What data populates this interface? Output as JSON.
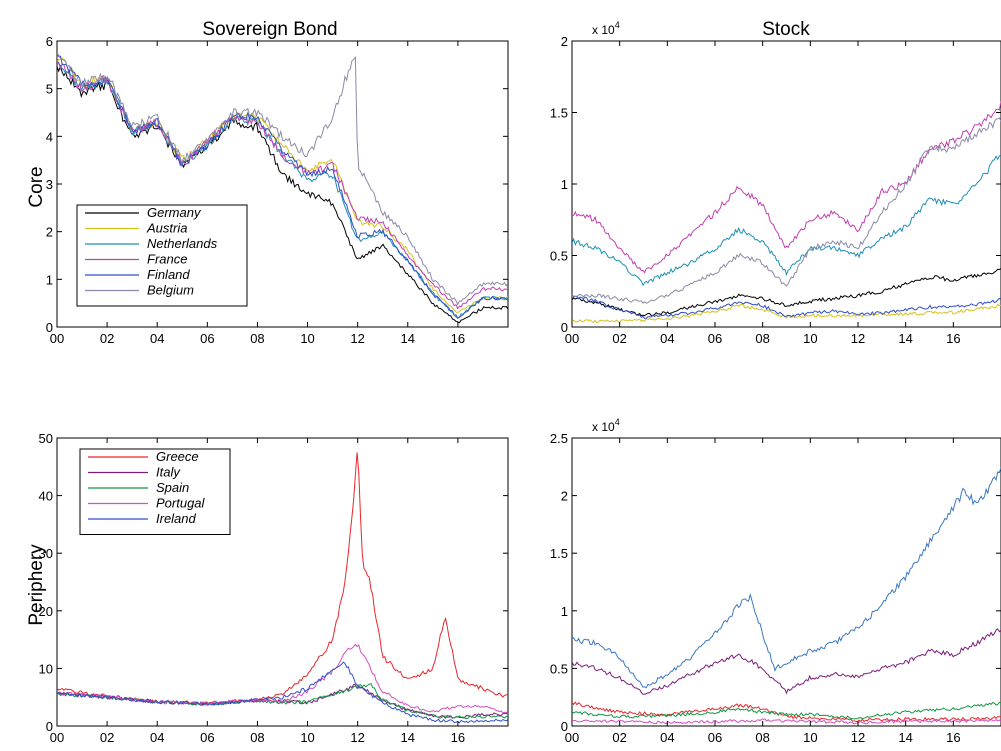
{
  "figure": {
    "col_titles": [
      "Sovereign Bond",
      "Stock"
    ],
    "row_labels": [
      "Core",
      "Periphery"
    ]
  },
  "chart_data": [
    {
      "id": "core-bond",
      "type": "line",
      "title": "Sovereign Bond",
      "ylabel": "Core",
      "xlim": [
        2000,
        2018
      ],
      "ylim": [
        0,
        6
      ],
      "xticks": [
        2000,
        2002,
        2004,
        2006,
        2008,
        2010,
        2012,
        2014,
        2016
      ],
      "xticklabels": [
        "00",
        "02",
        "04",
        "06",
        "08",
        "10",
        "12",
        "14",
        "16"
      ],
      "yticks": [
        0,
        1,
        2,
        3,
        4,
        5,
        6
      ],
      "yticklabels": [
        "0",
        "1",
        "2",
        "3",
        "4",
        "5",
        "6"
      ],
      "legend": "bottom-left",
      "series": [
        {
          "name": "Germany",
          "color": "#000000",
          "x": [
            2000,
            2001,
            2002,
            2003,
            2004,
            2005,
            2006,
            2007,
            2008,
            2009,
            2010,
            2011,
            2012,
            2013,
            2014,
            2015,
            2016,
            2017,
            2018
          ],
          "y": [
            5.5,
            4.9,
            5.1,
            4.0,
            4.2,
            3.4,
            3.8,
            4.3,
            4.2,
            3.2,
            2.8,
            2.6,
            1.4,
            1.7,
            1.1,
            0.5,
            0.1,
            0.4,
            0.4
          ]
        },
        {
          "name": "Austria",
          "color": "#d4c21a",
          "x": [
            2000,
            2001,
            2002,
            2003,
            2004,
            2005,
            2006,
            2007,
            2008,
            2009,
            2010,
            2011,
            2012,
            2013,
            2014,
            2015,
            2016,
            2017,
            2018
          ],
          "y": [
            5.7,
            5.1,
            5.2,
            4.1,
            4.3,
            3.5,
            3.9,
            4.4,
            4.4,
            3.8,
            3.3,
            3.5,
            2.2,
            2.1,
            1.6,
            0.8,
            0.3,
            0.6,
            0.6
          ]
        },
        {
          "name": "Netherlands",
          "color": "#1f8fb8",
          "x": [
            2000,
            2001,
            2002,
            2003,
            2004,
            2005,
            2006,
            2007,
            2008,
            2009,
            2010,
            2011,
            2012,
            2013,
            2014,
            2015,
            2016,
            2017,
            2018
          ],
          "y": [
            5.6,
            5.0,
            5.2,
            4.1,
            4.3,
            3.4,
            3.8,
            4.4,
            4.3,
            3.6,
            3.1,
            3.2,
            1.8,
            2.0,
            1.4,
            0.7,
            0.2,
            0.6,
            0.6
          ]
        },
        {
          "name": "France",
          "color": "#c040b0",
          "x": [
            2000,
            2001,
            2002,
            2003,
            2004,
            2005,
            2006,
            2007,
            2008,
            2009,
            2010,
            2011,
            2012,
            2013,
            2014,
            2015,
            2016,
            2017,
            2018
          ],
          "y": [
            5.6,
            5.0,
            5.2,
            4.1,
            4.3,
            3.4,
            3.9,
            4.4,
            4.3,
            3.6,
            3.2,
            3.4,
            2.3,
            2.2,
            1.5,
            0.9,
            0.4,
            0.8,
            0.8
          ]
        },
        {
          "name": "Finland",
          "color": "#3050c8",
          "x": [
            2000,
            2001,
            2002,
            2003,
            2004,
            2005,
            2006,
            2007,
            2008,
            2009,
            2010,
            2011,
            2012,
            2013,
            2014,
            2015,
            2016,
            2017,
            2018
          ],
          "y": [
            5.7,
            5.1,
            5.2,
            4.1,
            4.3,
            3.4,
            3.8,
            4.4,
            4.4,
            3.7,
            3.2,
            3.3,
            1.9,
            2.0,
            1.4,
            0.7,
            0.2,
            0.6,
            0.6
          ]
        },
        {
          "name": "Belgium",
          "color": "#8a8aa8",
          "x": [
            2000,
            2001,
            2002,
            2003,
            2004,
            2005,
            2006,
            2007,
            2008,
            2009,
            2010,
            2011,
            2011.9,
            2012,
            2013,
            2014,
            2015,
            2016,
            2017,
            2018
          ],
          "y": [
            5.7,
            5.1,
            5.3,
            4.2,
            4.4,
            3.5,
            3.9,
            4.5,
            4.5,
            4.0,
            3.6,
            4.4,
            5.8,
            3.4,
            2.4,
            1.9,
            1.0,
            0.5,
            0.9,
            0.9
          ]
        }
      ]
    },
    {
      "id": "core-stock",
      "type": "line",
      "title": "Stock",
      "multiplier": "x 10",
      "multiplier_exp": "4",
      "xlim": [
        2000,
        2018
      ],
      "ylim": [
        0,
        2
      ],
      "xticks": [
        2000,
        2002,
        2004,
        2006,
        2008,
        2010,
        2012,
        2014,
        2016
      ],
      "xticklabels": [
        "00",
        "02",
        "04",
        "06",
        "08",
        "10",
        "12",
        "14",
        "16"
      ],
      "yticks": [
        0,
        0.5,
        1,
        1.5,
        2
      ],
      "yticklabels": [
        "0",
        "0.5",
        "1",
        "1.5",
        "2"
      ],
      "series": [
        {
          "color": "#000000",
          "x": [
            2000,
            2001,
            2002,
            2003,
            2004,
            2005,
            2006,
            2007,
            2008,
            2009,
            2010,
            2011,
            2012,
            2013,
            2014,
            2015,
            2016,
            2017,
            2018
          ],
          "y": [
            0.2,
            0.17,
            0.12,
            0.08,
            0.1,
            0.14,
            0.18,
            0.22,
            0.2,
            0.15,
            0.18,
            0.2,
            0.22,
            0.25,
            0.3,
            0.35,
            0.33,
            0.36,
            0.4
          ]
        },
        {
          "color": "#d4c21a",
          "x": [
            2000,
            2001,
            2002,
            2003,
            2004,
            2005,
            2006,
            2007,
            2008,
            2009,
            2010,
            2011,
            2012,
            2013,
            2014,
            2015,
            2016,
            2017,
            2018
          ],
          "y": [
            0.04,
            0.04,
            0.04,
            0.05,
            0.06,
            0.08,
            0.11,
            0.15,
            0.12,
            0.07,
            0.08,
            0.08,
            0.08,
            0.09,
            0.09,
            0.1,
            0.1,
            0.13,
            0.15
          ]
        },
        {
          "color": "#1f8fb8",
          "x": [
            2000,
            2001,
            2002,
            2003,
            2004,
            2005,
            2006,
            2007,
            2008,
            2009,
            2010,
            2011,
            2012,
            2013,
            2014,
            2015,
            2016,
            2017,
            2018
          ],
          "y": [
            0.6,
            0.55,
            0.45,
            0.3,
            0.38,
            0.45,
            0.55,
            0.68,
            0.6,
            0.38,
            0.55,
            0.55,
            0.5,
            0.62,
            0.7,
            0.9,
            0.85,
            1.0,
            1.22
          ]
        },
        {
          "color": "#c040b0",
          "x": [
            2000,
            2001,
            2002,
            2003,
            2004,
            2005,
            2006,
            2007,
            2008,
            2009,
            2010,
            2011,
            2012,
            2013,
            2014,
            2015,
            2016,
            2017,
            2018
          ],
          "y": [
            0.8,
            0.75,
            0.55,
            0.38,
            0.5,
            0.65,
            0.8,
            0.98,
            0.85,
            0.55,
            0.75,
            0.8,
            0.68,
            0.95,
            1.0,
            1.25,
            1.3,
            1.4,
            1.55
          ]
        },
        {
          "color": "#3050c8",
          "x": [
            2000,
            2001,
            2002,
            2003,
            2004,
            2005,
            2006,
            2007,
            2008,
            2009,
            2010,
            2011,
            2012,
            2013,
            2014,
            2015,
            2016,
            2017,
            2018
          ],
          "y": [
            0.22,
            0.18,
            0.12,
            0.07,
            0.08,
            0.1,
            0.13,
            0.17,
            0.15,
            0.07,
            0.1,
            0.11,
            0.09,
            0.1,
            0.12,
            0.14,
            0.14,
            0.16,
            0.19
          ]
        },
        {
          "color": "#8a8aa8",
          "x": [
            2000,
            2001,
            2002,
            2003,
            2004,
            2005,
            2006,
            2007,
            2008,
            2009,
            2010,
            2011,
            2012,
            2013,
            2014,
            2015,
            2016,
            2017,
            2018
          ],
          "y": [
            0.22,
            0.22,
            0.2,
            0.17,
            0.22,
            0.3,
            0.38,
            0.5,
            0.45,
            0.28,
            0.55,
            0.6,
            0.55,
            0.8,
            1.0,
            1.25,
            1.25,
            1.35,
            1.45
          ]
        }
      ]
    },
    {
      "id": "periphery-bond",
      "type": "line",
      "ylabel": "Periphery",
      "xlim": [
        2000,
        2018
      ],
      "ylim": [
        0,
        50
      ],
      "xticks": [
        2000,
        2002,
        2004,
        2006,
        2008,
        2010,
        2012,
        2014,
        2016
      ],
      "xticklabels": [
        "00",
        "02",
        "04",
        "06",
        "08",
        "10",
        "12",
        "14",
        "16"
      ],
      "yticks": [
        0,
        10,
        20,
        30,
        40,
        50
      ],
      "yticklabels": [
        "0",
        "10",
        "20",
        "30",
        "40",
        "50"
      ],
      "legend": "top-left",
      "series": [
        {
          "name": "Greece",
          "color": "#e8262b",
          "x": [
            2000,
            2002,
            2004,
            2006,
            2008,
            2009,
            2010,
            2010.5,
            2011,
            2011.5,
            2011.8,
            2012.0,
            2012.2,
            2012.5,
            2013,
            2014,
            2015,
            2015.5,
            2016,
            2017,
            2018
          ],
          "y": [
            6.4,
            5.2,
            4.2,
            4.0,
            4.5,
            5.5,
            9.0,
            12.0,
            15.0,
            25.0,
            38.0,
            48.0,
            28.0,
            25.0,
            12.0,
            8.0,
            10.0,
            19.0,
            8.0,
            6.5,
            5.0
          ]
        },
        {
          "name": "Italy",
          "color": "#7b1d7b",
          "x": [
            2000,
            2002,
            2004,
            2006,
            2008,
            2009,
            2010,
            2011,
            2011.9,
            2012.5,
            2013,
            2014,
            2015,
            2016,
            2017,
            2018
          ],
          "y": [
            5.6,
            5.0,
            4.2,
            3.8,
            4.5,
            4.3,
            4.0,
            5.5,
            7.0,
            5.8,
            4.3,
            2.8,
            1.7,
            1.5,
            2.0,
            2.0
          ]
        },
        {
          "name": "Spain",
          "color": "#139645",
          "x": [
            2000,
            2002,
            2004,
            2006,
            2008,
            2009,
            2010,
            2011,
            2012,
            2012.5,
            2013,
            2014,
            2015,
            2016,
            2017,
            2018
          ],
          "y": [
            5.6,
            5.0,
            4.2,
            3.8,
            4.4,
            4.1,
            4.2,
            5.5,
            6.8,
            7.2,
            4.5,
            2.7,
            1.7,
            1.5,
            1.6,
            1.6
          ]
        },
        {
          "name": "Portugal",
          "color": "#d050c0",
          "x": [
            2000,
            2002,
            2004,
            2006,
            2008,
            2009,
            2010,
            2011,
            2011.6,
            2012.0,
            2012.5,
            2013,
            2014,
            2015,
            2016,
            2017,
            2018
          ],
          "y": [
            5.7,
            5.1,
            4.2,
            3.9,
            4.5,
            4.3,
            6.0,
            9.5,
            13.0,
            14.0,
            10.0,
            6.0,
            3.5,
            2.5,
            3.5,
            3.5,
            2.3
          ]
        },
        {
          "name": "Ireland",
          "color": "#3050c8",
          "x": [
            2000,
            2002,
            2004,
            2006,
            2008,
            2009,
            2010,
            2010.8,
            2011.5,
            2012,
            2013,
            2014,
            2015,
            2016,
            2017,
            2018
          ],
          "y": [
            5.6,
            5.0,
            4.2,
            3.8,
            4.5,
            5.0,
            6.5,
            9.0,
            11.0,
            7.0,
            4.0,
            2.0,
            1.0,
            0.8,
            0.9,
            1.0
          ]
        }
      ]
    },
    {
      "id": "periphery-stock",
      "type": "line",
      "multiplier": "x 10",
      "multiplier_exp": "4",
      "xlim": [
        2000,
        2018
      ],
      "ylim": [
        0,
        2.5
      ],
      "xticks": [
        2000,
        2002,
        2004,
        2006,
        2008,
        2010,
        2012,
        2014,
        2016
      ],
      "xticklabels": [
        "00",
        "02",
        "04",
        "06",
        "08",
        "10",
        "12",
        "14",
        "16"
      ],
      "yticks": [
        0,
        0.5,
        1,
        1.5,
        2,
        2.5
      ],
      "yticklabels": [
        "0",
        "0.5",
        "1",
        "1.5",
        "2",
        "2.5"
      ],
      "series": [
        {
          "color": "#3c78c0",
          "x": [
            2000,
            2001,
            2002,
            2003,
            2004,
            2005,
            2006,
            2007,
            2007.5,
            2008,
            2008.5,
            2009,
            2010,
            2011,
            2012,
            2013,
            2014,
            2015,
            2016,
            2016.5,
            2017,
            2018
          ],
          "y": [
            0.75,
            0.72,
            0.6,
            0.33,
            0.45,
            0.6,
            0.8,
            1.05,
            1.12,
            0.8,
            0.5,
            0.55,
            0.65,
            0.72,
            0.85,
            1.05,
            1.3,
            1.6,
            1.9,
            2.05,
            1.9,
            2.25
          ]
        },
        {
          "color": "#7b1d7b",
          "x": [
            2000,
            2001,
            2002,
            2003,
            2004,
            2005,
            2006,
            2007,
            2008,
            2009,
            2010,
            2011,
            2012,
            2013,
            2014,
            2015,
            2016,
            2017,
            2018
          ],
          "y": [
            0.55,
            0.5,
            0.42,
            0.28,
            0.35,
            0.45,
            0.55,
            0.62,
            0.5,
            0.3,
            0.42,
            0.45,
            0.42,
            0.5,
            0.55,
            0.65,
            0.62,
            0.72,
            0.85
          ]
        },
        {
          "color": "#e8262b",
          "x": [
            2000,
            2002,
            2004,
            2006,
            2007,
            2008,
            2009,
            2010,
            2012,
            2014,
            2016,
            2018
          ],
          "y": [
            0.2,
            0.12,
            0.1,
            0.15,
            0.18,
            0.15,
            0.08,
            0.07,
            0.05,
            0.06,
            0.06,
            0.07
          ]
        },
        {
          "color": "#139645",
          "x": [
            2000,
            2002,
            2004,
            2006,
            2007,
            2008,
            2009,
            2010,
            2011,
            2012,
            2014,
            2016,
            2018
          ],
          "y": [
            0.12,
            0.08,
            0.09,
            0.12,
            0.15,
            0.12,
            0.1,
            0.1,
            0.08,
            0.07,
            0.12,
            0.15,
            0.2
          ]
        },
        {
          "color": "#d050c0",
          "x": [
            2000,
            2002,
            2004,
            2006,
            2008,
            2010,
            2012,
            2014,
            2016,
            2018
          ],
          "y": [
            0.05,
            0.04,
            0.03,
            0.04,
            0.05,
            0.04,
            0.03,
            0.04,
            0.04,
            0.05
          ]
        }
      ]
    }
  ]
}
